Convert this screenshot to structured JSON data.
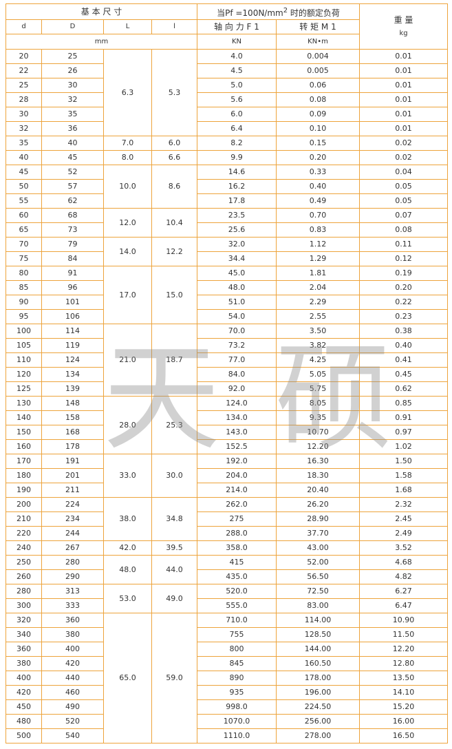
{
  "header": {
    "basic_size": "基 本 尺 寸",
    "load_title": "当Pf =100N/mm",
    "load_title_sup": "2",
    "load_title_end": " 时的额定负荷",
    "weight": "重 量",
    "weight_unit": "kg",
    "columns": [
      "d",
      "D",
      "L",
      "l",
      "轴 向 力 F 1",
      "转 矩 M 1"
    ],
    "size_unit": "mm",
    "force_unit": "KN",
    "torque_unit": "KN•m"
  },
  "groups": [
    {
      "L": "6.3",
      "l": "5.3",
      "rows": [
        [
          "20",
          "25",
          "4.0",
          "0.004",
          "0.01"
        ],
        [
          "22",
          "26",
          "4.5",
          "0.005",
          "0.01"
        ],
        [
          "25",
          "30",
          "5.0",
          "0.06",
          "0.01"
        ],
        [
          "28",
          "32",
          "5.6",
          "0.08",
          "0.01"
        ],
        [
          "30",
          "35",
          "6.0",
          "0.09",
          "0.01"
        ],
        [
          "32",
          "36",
          "6.4",
          "0.10",
          "0.01"
        ]
      ]
    },
    {
      "L": "7.0",
      "l": "6.0",
      "rows": [
        [
          "35",
          "40",
          "8.2",
          "0.15",
          "0.02"
        ]
      ]
    },
    {
      "L": "8.0",
      "l": "6.6",
      "rows": [
        [
          "40",
          "45",
          "9.9",
          "0.20",
          "0.02"
        ]
      ]
    },
    {
      "L": "10.0",
      "l": "8.6",
      "rows": [
        [
          "45",
          "52",
          "14.6",
          "0.33",
          "0.04"
        ],
        [
          "50",
          "57",
          "16.2",
          "0.40",
          "0.05"
        ],
        [
          "55",
          "62",
          "17.8",
          "0.49",
          "0.05"
        ]
      ]
    },
    {
      "L": "12.0",
      "l": "10.4",
      "rows": [
        [
          "60",
          "68",
          "23.5",
          "0.70",
          "0.07"
        ],
        [
          "65",
          "73",
          "25.6",
          "0.83",
          "0.08"
        ]
      ]
    },
    {
      "L": "14.0",
      "l": "12.2",
      "rows": [
        [
          "70",
          "79",
          "32.0",
          "1.12",
          "0.11"
        ],
        [
          "75",
          "84",
          "34.4",
          "1.29",
          "0.12"
        ]
      ]
    },
    {
      "L": "17.0",
      "l": "15.0",
      "rows": [
        [
          "80",
          "91",
          "45.0",
          "1.81",
          "0.19"
        ],
        [
          "85",
          "96",
          "48.0",
          "2.04",
          "0.20"
        ],
        [
          "90",
          "101",
          "51.0",
          "2.29",
          "0.22"
        ],
        [
          "95",
          "106",
          "54.0",
          "2.55",
          "0.23"
        ]
      ]
    },
    {
      "L": "21.0",
      "l": "18.7",
      "rows": [
        [
          "100",
          "114",
          "70.0",
          "3.50",
          "0.38"
        ],
        [
          "105",
          "119",
          "73.2",
          "3.82",
          "0.40"
        ],
        [
          "110",
          "124",
          "77.0",
          "4.25",
          "0.41"
        ],
        [
          "120",
          "134",
          "84.0",
          "5.05",
          "0.45"
        ],
        [
          "125",
          "139",
          "92.0",
          "5.75",
          "0.62"
        ]
      ]
    },
    {
      "L": "28.0",
      "l": "25.3",
      "rows": [
        [
          "130",
          "148",
          "124.0",
          "8.05",
          "0.85"
        ],
        [
          "140",
          "158",
          "134.0",
          "9.35",
          "0.91"
        ],
        [
          "150",
          "168",
          "143.0",
          "10.70",
          "0.97"
        ],
        [
          "160",
          "178",
          "152.5",
          "12.20",
          "1.02"
        ]
      ]
    },
    {
      "L": "33.0",
      "l": "30.0",
      "rows": [
        [
          "170",
          "191",
          "192.0",
          "16.30",
          "1.50"
        ],
        [
          "180",
          "201",
          "204.0",
          "18.30",
          "1.58"
        ],
        [
          "190",
          "211",
          "214.0",
          "20.40",
          "1.68"
        ]
      ]
    },
    {
      "L": "38.0",
      "l": "34.8",
      "rows": [
        [
          "200",
          "224",
          "262.0",
          "26.20",
          "2.32"
        ],
        [
          "210",
          "234",
          "275",
          "28.90",
          "2.45"
        ],
        [
          "220",
          "244",
          "288.0",
          "37.70",
          "2.49"
        ]
      ]
    },
    {
      "L": "42.0",
      "l": "39.5",
      "rows": [
        [
          "240",
          "267",
          "358.0",
          "43.00",
          "3.52"
        ]
      ]
    },
    {
      "L": "48.0",
      "l": "44.0",
      "rows": [
        [
          "250",
          "280",
          "415",
          "52.00",
          "4.68"
        ],
        [
          "260",
          "290",
          "435.0",
          "56.50",
          "4.82"
        ]
      ]
    },
    {
      "L": "53.0",
      "l": "49.0",
      "rows": [
        [
          "280",
          "313",
          "520.0",
          "72.50",
          "6.27"
        ],
        [
          "300",
          "333",
          "555.0",
          "83.00",
          "6.47"
        ]
      ]
    },
    {
      "L": "65.0",
      "l": "59.0",
      "rows": [
        [
          "320",
          "360",
          "710.0",
          "114.00",
          "10.90"
        ],
        [
          "340",
          "380",
          "755",
          "128.50",
          "11.50"
        ],
        [
          "360",
          "400",
          "800",
          "144.00",
          "12.20"
        ],
        [
          "380",
          "420",
          "845",
          "160.50",
          "12.80"
        ],
        [
          "400",
          "440",
          "890",
          "178.00",
          "13.50"
        ],
        [
          "420",
          "460",
          "935",
          "196.00",
          "14.10"
        ],
        [
          "450",
          "490",
          "998.0",
          "224.50",
          "15.20"
        ],
        [
          "480",
          "520",
          "1070.0",
          "256.00",
          "16.00"
        ],
        [
          "500",
          "540",
          "1110.0",
          "278.00",
          "16.50"
        ]
      ]
    }
  ],
  "watermark": [
    "天",
    "硕"
  ]
}
